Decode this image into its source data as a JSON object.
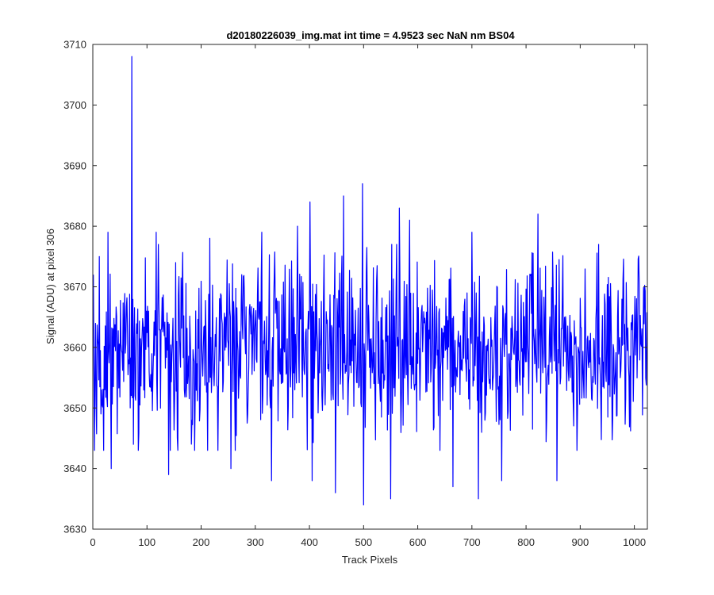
{
  "chart_data": {
    "type": "line",
    "title": "d20180226039_img.mat int time = 4.9523 sec  NaN nm BS04",
    "xlabel": "Track Pixels",
    "ylabel": "Signal (ADU) at pixel 306",
    "xlim": [
      0,
      1024
    ],
    "ylim": [
      3630,
      3710
    ],
    "xticks": [
      0,
      100,
      200,
      300,
      400,
      500,
      600,
      700,
      800,
      900,
      1000
    ],
    "yticks": [
      3630,
      3640,
      3650,
      3660,
      3670,
      3680,
      3690,
      3700,
      3710
    ],
    "grid": false,
    "legend": "none",
    "line_color": "#0000ff",
    "n_points": 1024,
    "baseline_mean": 3660,
    "noise_range": [
      3643,
      3677
    ],
    "notable_points": [
      {
        "x": 1,
        "y": 3672
      },
      {
        "x": 3,
        "y": 3643
      },
      {
        "x": 12,
        "y": 3675
      },
      {
        "x": 20,
        "y": 3643
      },
      {
        "x": 28,
        "y": 3679
      },
      {
        "x": 34,
        "y": 3640
      },
      {
        "x": 72,
        "y": 3708
      },
      {
        "x": 75,
        "y": 3644
      },
      {
        "x": 84,
        "y": 3643
      },
      {
        "x": 117,
        "y": 3679
      },
      {
        "x": 140,
        "y": 3639
      },
      {
        "x": 143,
        "y": 3643
      },
      {
        "x": 157,
        "y": 3643
      },
      {
        "x": 188,
        "y": 3643
      },
      {
        "x": 216,
        "y": 3678
      },
      {
        "x": 231,
        "y": 3643
      },
      {
        "x": 255,
        "y": 3640
      },
      {
        "x": 312,
        "y": 3679
      },
      {
        "x": 330,
        "y": 3638
      },
      {
        "x": 378,
        "y": 3680
      },
      {
        "x": 401,
        "y": 3684
      },
      {
        "x": 405,
        "y": 3638
      },
      {
        "x": 448,
        "y": 3636
      },
      {
        "x": 463,
        "y": 3685
      },
      {
        "x": 498,
        "y": 3687
      },
      {
        "x": 500,
        "y": 3634
      },
      {
        "x": 550,
        "y": 3635
      },
      {
        "x": 566,
        "y": 3683
      },
      {
        "x": 585,
        "y": 3681
      },
      {
        "x": 665,
        "y": 3637
      },
      {
        "x": 700,
        "y": 3679
      },
      {
        "x": 712,
        "y": 3635
      },
      {
        "x": 755,
        "y": 3638
      },
      {
        "x": 822,
        "y": 3682
      },
      {
        "x": 857,
        "y": 3638
      },
      {
        "x": 1024,
        "y": 3658
      }
    ]
  }
}
